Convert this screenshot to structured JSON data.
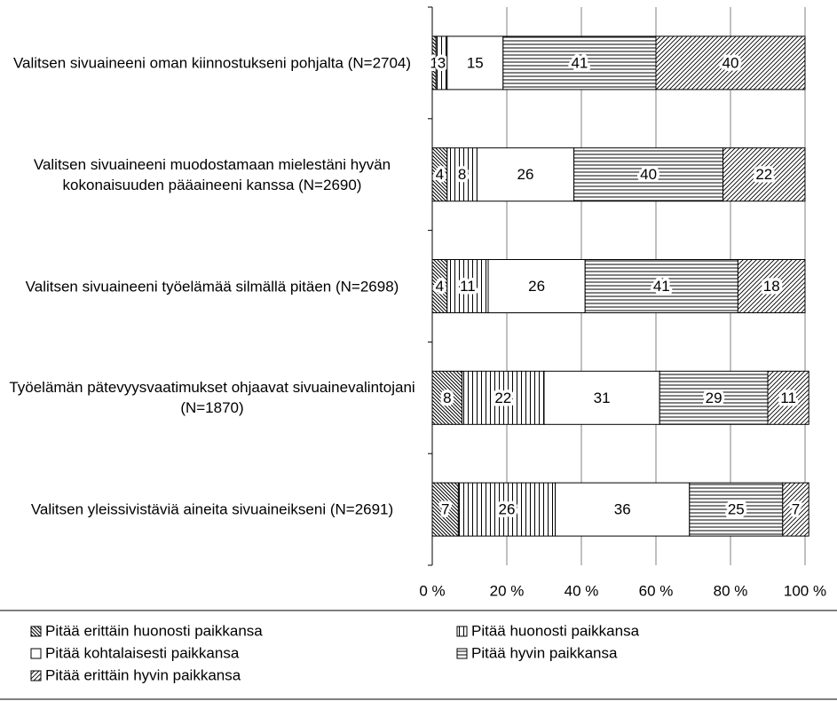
{
  "chart_data": {
    "type": "stacked-barh",
    "categories": [
      "Valitsen sivuaineeni oman kiinnostukseni pohjalta (N=2704)",
      "Valitsen sivuaineeni muodostamaan mielestäni hyvän kokonaisuuden pääaineeni kanssa (N=2690)",
      "Valitsen sivuaineeni työelämää silmällä pitäen (N=2698)",
      "Työelämän pätevyysvaatimukset ohjaavat sivuainevalintojani (N=1870)",
      "Valitsen yleissivistäviä aineita sivuaineikseni (N=2691)"
    ],
    "series": [
      {
        "name": "Pitää erittäin huonosti paikkansa",
        "color": "#000000",
        "pattern": "diagonal-down",
        "values": [
          1,
          4,
          4,
          8,
          7
        ]
      },
      {
        "name": "Pitää huonosti paikkansa",
        "color": "#000000",
        "pattern": "vertical",
        "values": [
          3,
          8,
          11,
          22,
          26
        ]
      },
      {
        "name": "Pitää kohtalaisesti paikkansa",
        "color": "#000000",
        "pattern": "none",
        "values": [
          15,
          26,
          26,
          31,
          36
        ]
      },
      {
        "name": "Pitää hyvin paikkansa",
        "color": "#000000",
        "pattern": "horizontal",
        "values": [
          41,
          40,
          41,
          29,
          25
        ]
      },
      {
        "name": "Pitää erittäin hyvin paikkansa",
        "color": "#000000",
        "pattern": "diagonal-up",
        "values": [
          40,
          22,
          18,
          11,
          7
        ]
      }
    ],
    "xlim": [
      0,
      100
    ],
    "xticks": [
      {
        "value": 0,
        "label": "0 %"
      },
      {
        "value": 20,
        "label": "20 %"
      },
      {
        "value": 40,
        "label": "40 %"
      },
      {
        "value": 60,
        "label": "60 %"
      },
      {
        "value": 80,
        "label": "80 %"
      },
      {
        "value": 100,
        "label": "100 %"
      }
    ],
    "grid": true,
    "legend": "bottom"
  }
}
